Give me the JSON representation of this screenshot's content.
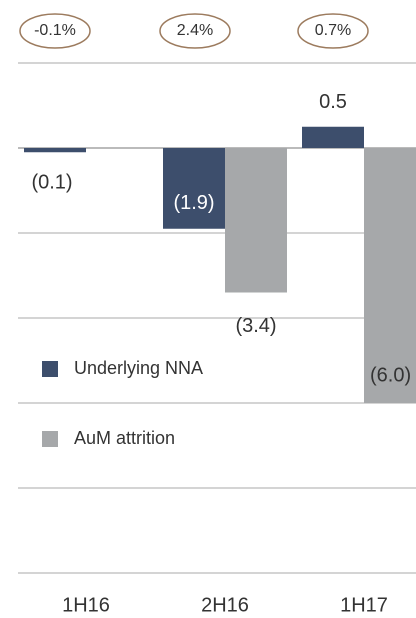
{
  "chart_data": {
    "type": "bar",
    "categories": [
      "1H16",
      "2H16",
      "1H17"
    ],
    "series": [
      {
        "name": "Underlying NNA",
        "color": "#3d4e6c",
        "values": [
          -0.1,
          -1.9,
          0.5
        ],
        "value_labels": [
          "(0.1)",
          "(1.9)",
          "0.5"
        ]
      },
      {
        "name": "AuM attrition",
        "color": "#a6a8aa",
        "values": [
          null,
          -3.4,
          -6.0
        ],
        "value_labels": [
          null,
          "(3.4)",
          "(6.0)"
        ]
      }
    ],
    "annotations": [
      "-0.1%",
      "2.4%",
      "0.7%"
    ],
    "annotation_color": "#9c7b5e",
    "ylim": [
      -10,
      2
    ],
    "yticks": [
      -10,
      -8,
      -6,
      -4,
      -2,
      0,
      2
    ],
    "grid": true,
    "legend": "left"
  }
}
